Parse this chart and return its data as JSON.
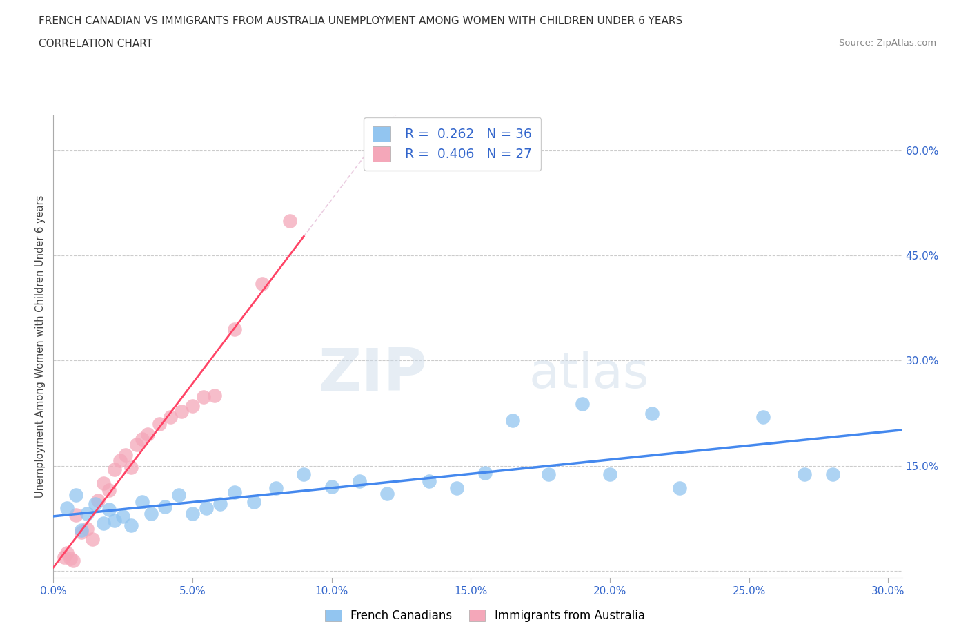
{
  "title_line1": "FRENCH CANADIAN VS IMMIGRANTS FROM AUSTRALIA UNEMPLOYMENT AMONG WOMEN WITH CHILDREN UNDER 6 YEARS",
  "title_line2": "CORRELATION CHART",
  "source": "Source: ZipAtlas.com",
  "ylabel": "Unemployment Among Women with Children Under 6 years",
  "xlim": [
    0.0,
    0.305
  ],
  "ylim": [
    -0.01,
    0.65
  ],
  "xticks": [
    0.0,
    0.05,
    0.1,
    0.15,
    0.2,
    0.25,
    0.3
  ],
  "yticks": [
    0.0,
    0.15,
    0.3,
    0.45,
    0.6
  ],
  "xtick_labels": [
    "0.0%",
    "5.0%",
    "10.0%",
    "15.0%",
    "20.0%",
    "25.0%",
    "30.0%"
  ],
  "ytick_labels": [
    "",
    "15.0%",
    "30.0%",
    "45.0%",
    "60.0%"
  ],
  "blue_color": "#92C5F0",
  "pink_color": "#F4A7B9",
  "blue_line_color": "#4488EE",
  "pink_line_color": "#FF4466",
  "pink_dash_color": "#DDAACC",
  "watermark_zip": "ZIP",
  "watermark_atlas": "atlas",
  "watermark_color": "#C8D8E8",
  "legend_label_blue": "French Canadians",
  "legend_label_pink": "Immigrants from Australia",
  "blue_x": [
    0.005,
    0.008,
    0.01,
    0.012,
    0.015,
    0.018,
    0.02,
    0.022,
    0.025,
    0.028,
    0.032,
    0.035,
    0.04,
    0.045,
    0.05,
    0.055,
    0.06,
    0.065,
    0.072,
    0.08,
    0.09,
    0.1,
    0.11,
    0.12,
    0.135,
    0.145,
    0.155,
    0.165,
    0.178,
    0.19,
    0.2,
    0.215,
    0.225,
    0.255,
    0.27,
    0.28
  ],
  "blue_y": [
    0.09,
    0.108,
    0.058,
    0.082,
    0.095,
    0.068,
    0.088,
    0.072,
    0.078,
    0.065,
    0.098,
    0.082,
    0.092,
    0.108,
    0.082,
    0.09,
    0.095,
    0.112,
    0.098,
    0.118,
    0.138,
    0.12,
    0.128,
    0.11,
    0.128,
    0.118,
    0.14,
    0.215,
    0.138,
    0.238,
    0.138,
    0.225,
    0.118,
    0.22,
    0.138,
    0.138
  ],
  "pink_x": [
    0.004,
    0.005,
    0.006,
    0.007,
    0.008,
    0.01,
    0.012,
    0.014,
    0.016,
    0.018,
    0.02,
    0.022,
    0.024,
    0.026,
    0.028,
    0.03,
    0.032,
    0.034,
    0.038,
    0.042,
    0.046,
    0.05,
    0.054,
    0.058,
    0.065,
    0.075,
    0.085
  ],
  "pink_y": [
    0.02,
    0.025,
    0.018,
    0.015,
    0.08,
    0.055,
    0.06,
    0.045,
    0.1,
    0.125,
    0.115,
    0.145,
    0.158,
    0.165,
    0.148,
    0.18,
    0.188,
    0.195,
    0.21,
    0.22,
    0.228,
    0.235,
    0.248,
    0.25,
    0.345,
    0.41,
    0.5
  ]
}
